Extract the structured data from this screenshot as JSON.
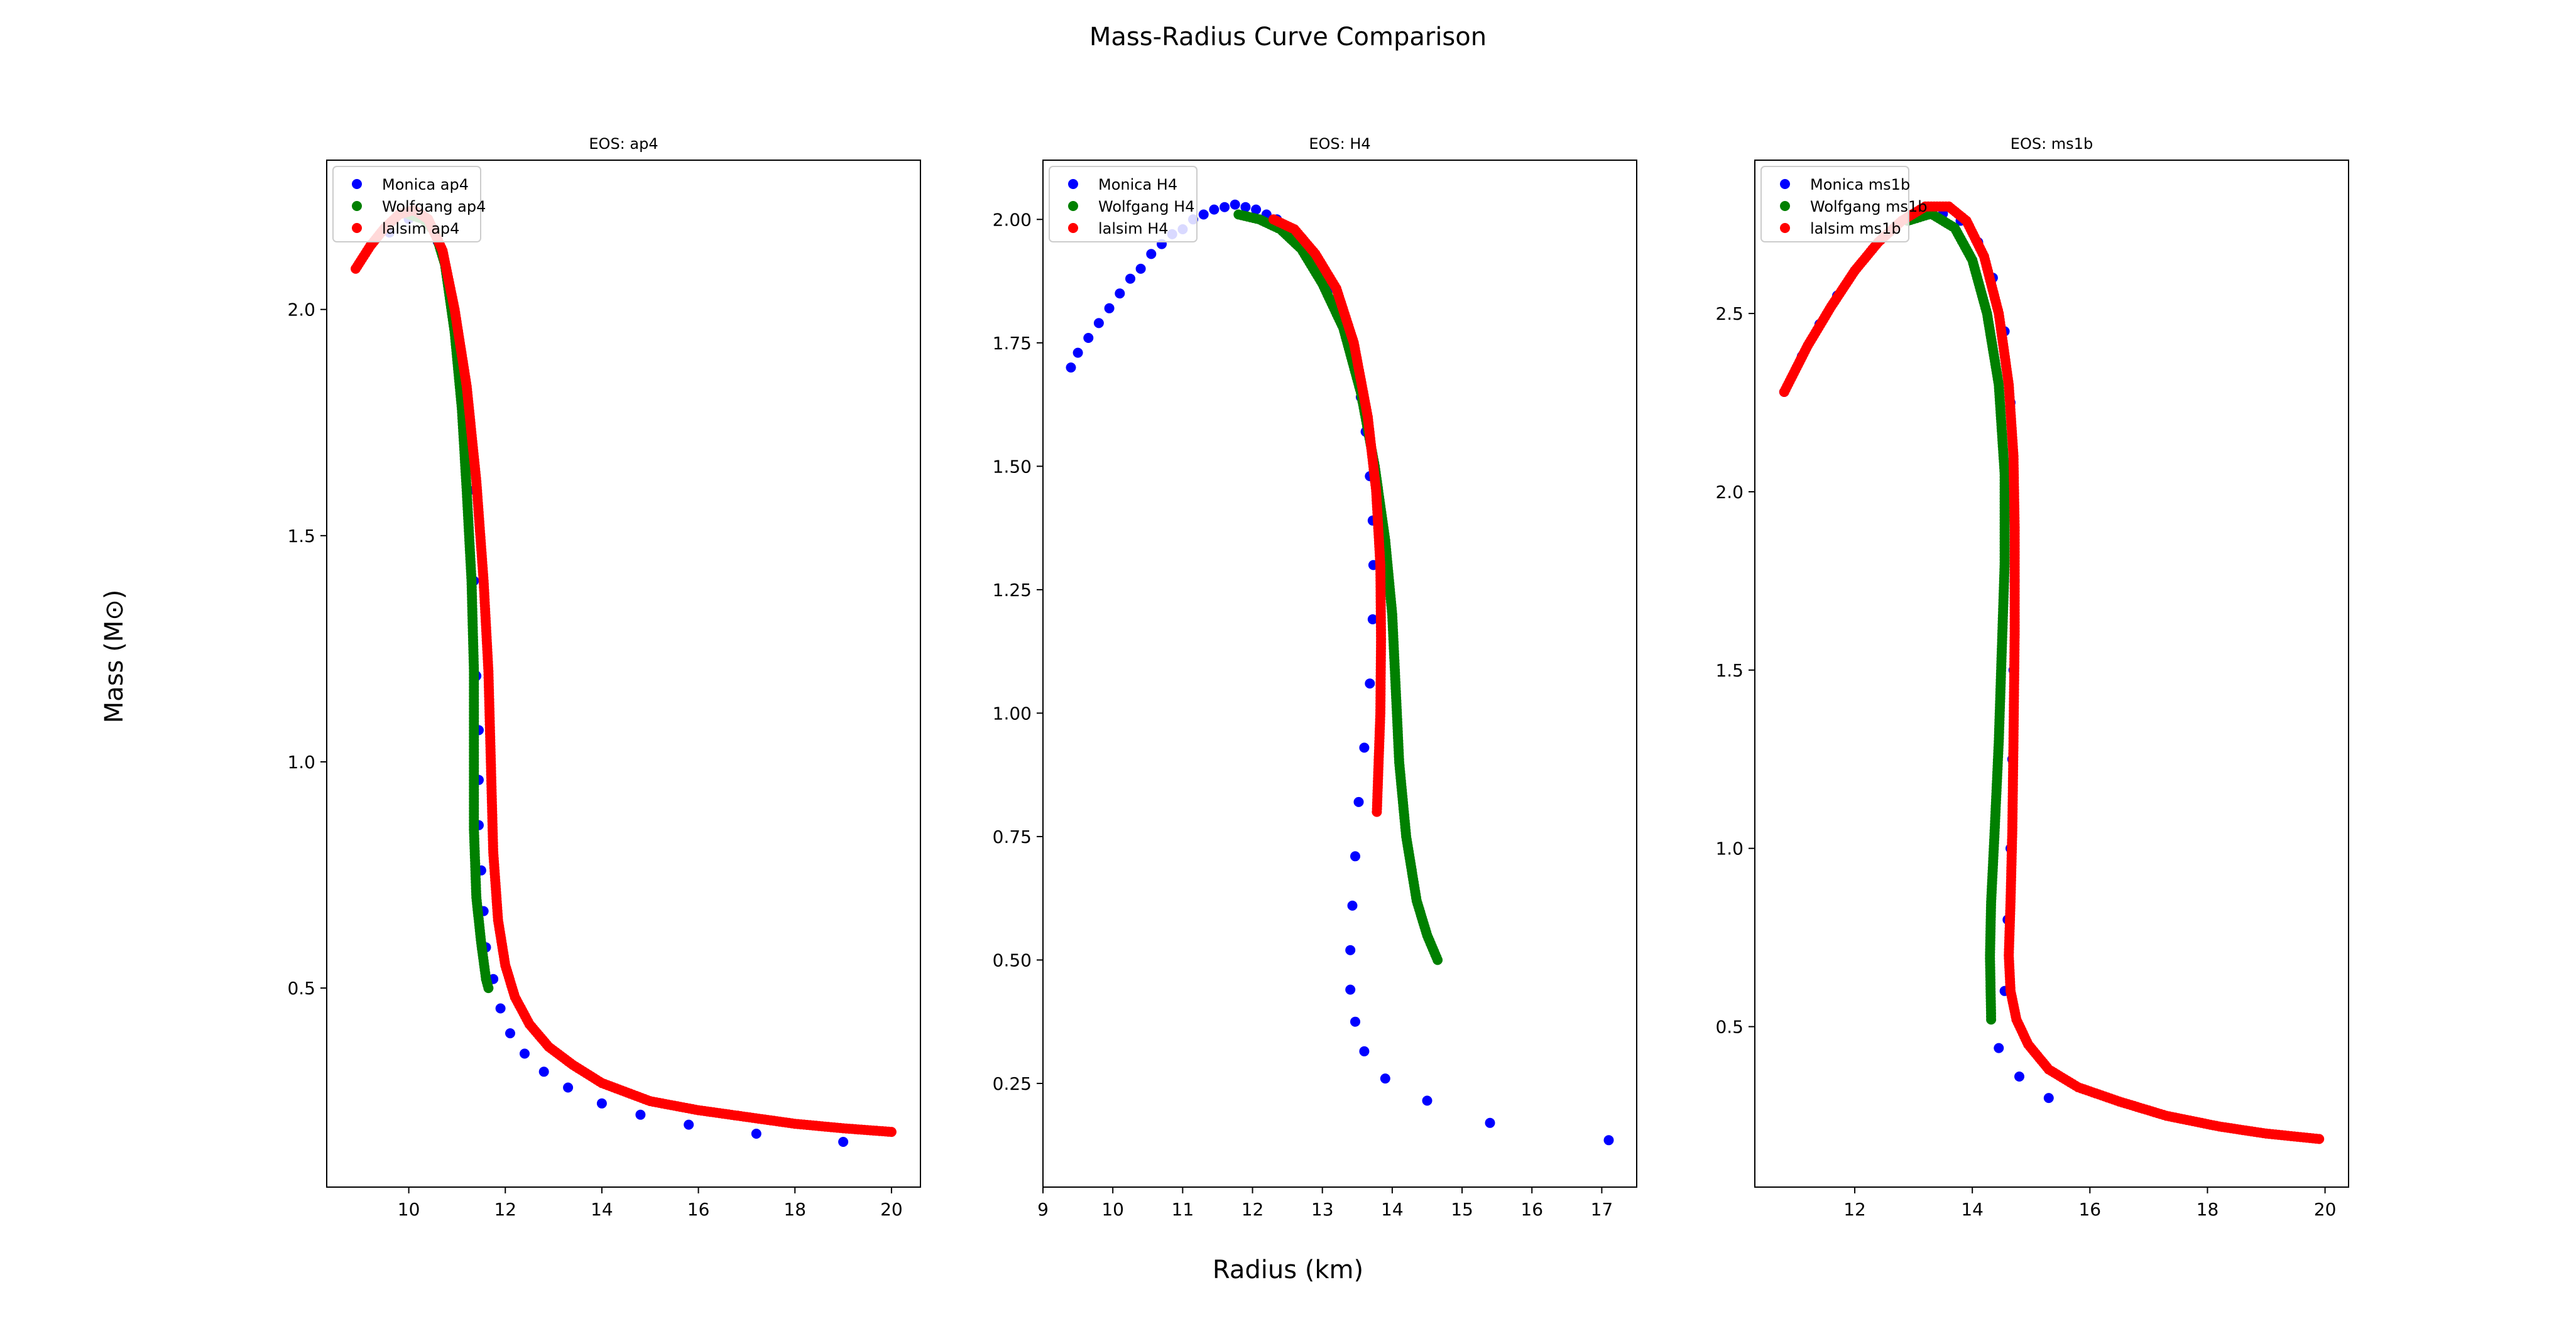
{
  "figure": {
    "title": "Mass-Radius Curve Comparison",
    "xlabel": "Radius (km)",
    "ylabel": "Mass (M⊙)"
  },
  "chart_data": [
    {
      "type": "scatter",
      "title": "EOS: ap4",
      "xlim": [
        8.3,
        20.6
      ],
      "ylim": [
        0.06,
        2.33
      ],
      "xticks": [
        10,
        12,
        14,
        16,
        18,
        20
      ],
      "yticks": [
        0.5,
        1.0,
        1.5,
        2.0
      ],
      "grid": false,
      "legend_position": "top-left",
      "series": [
        {
          "name": "Monica ap4",
          "color": "#0000ff",
          "style": "sparse",
          "points": [
            [
              9.6,
              2.17
            ],
            [
              10.0,
              2.2
            ],
            [
              10.3,
              2.2
            ],
            [
              10.6,
              2.15
            ],
            [
              10.9,
              2.02
            ],
            [
              11.1,
              1.82
            ],
            [
              11.25,
              1.6
            ],
            [
              11.35,
              1.4
            ],
            [
              11.4,
              1.19
            ],
            [
              11.45,
              1.07
            ],
            [
              11.45,
              0.96
            ],
            [
              11.45,
              0.86
            ],
            [
              11.5,
              0.76
            ],
            [
              11.55,
              0.67
            ],
            [
              11.6,
              0.59
            ],
            [
              11.75,
              0.52
            ],
            [
              11.9,
              0.455
            ],
            [
              12.1,
              0.4
            ],
            [
              12.4,
              0.355
            ],
            [
              12.8,
              0.315
            ],
            [
              13.3,
              0.28
            ],
            [
              14.0,
              0.245
            ],
            [
              14.8,
              0.22
            ],
            [
              15.8,
              0.198
            ],
            [
              17.2,
              0.178
            ],
            [
              19.0,
              0.16
            ]
          ]
        },
        {
          "name": "Wolfgang ap4",
          "color": "#008000",
          "style": "dense",
          "points": [
            [
              10.0,
              2.21
            ],
            [
              10.3,
              2.2
            ],
            [
              10.55,
              2.17
            ],
            [
              10.75,
              2.1
            ],
            [
              10.95,
              1.95
            ],
            [
              11.1,
              1.78
            ],
            [
              11.2,
              1.6
            ],
            [
              11.3,
              1.4
            ],
            [
              11.35,
              1.2
            ],
            [
              11.35,
              1.0
            ],
            [
              11.35,
              0.85
            ],
            [
              11.4,
              0.7
            ],
            [
              11.5,
              0.6
            ],
            [
              11.6,
              0.52
            ],
            [
              11.65,
              0.5
            ]
          ]
        },
        {
          "name": "lalsim ap4",
          "color": "#ff0000",
          "style": "dense",
          "points": [
            [
              8.9,
              2.09
            ],
            [
              9.2,
              2.14
            ],
            [
              9.5,
              2.18
            ],
            [
              9.8,
              2.21
            ],
            [
              10.1,
              2.22
            ],
            [
              10.4,
              2.2
            ],
            [
              10.7,
              2.13
            ],
            [
              10.95,
              2.0
            ],
            [
              11.2,
              1.83
            ],
            [
              11.4,
              1.62
            ],
            [
              11.55,
              1.4
            ],
            [
              11.65,
              1.2
            ],
            [
              11.7,
              1.0
            ],
            [
              11.75,
              0.8
            ],
            [
              11.85,
              0.65
            ],
            [
              12.0,
              0.55
            ],
            [
              12.2,
              0.48
            ],
            [
              12.5,
              0.42
            ],
            [
              12.9,
              0.37
            ],
            [
              13.4,
              0.33
            ],
            [
              14.0,
              0.29
            ],
            [
              15.0,
              0.25
            ],
            [
              16.0,
              0.23
            ],
            [
              17.0,
              0.215
            ],
            [
              18.0,
              0.2
            ],
            [
              19.0,
              0.19
            ],
            [
              20.0,
              0.182
            ]
          ]
        }
      ]
    },
    {
      "type": "scatter",
      "title": "EOS: H4",
      "xlim": [
        9.0,
        17.5
      ],
      "ylim": [
        0.04,
        2.12
      ],
      "xticks": [
        9,
        10,
        11,
        12,
        13,
        14,
        15,
        16,
        17
      ],
      "yticks": [
        0.25,
        0.5,
        0.75,
        1.0,
        1.25,
        1.5,
        1.75,
        2.0
      ],
      "tick_decimals": 2,
      "grid": false,
      "legend_position": "top-left",
      "series": [
        {
          "name": "Monica H4",
          "color": "#0000ff",
          "style": "sparse",
          "points": [
            [
              9.4,
              1.7
            ],
            [
              9.5,
              1.73
            ],
            [
              9.65,
              1.76
            ],
            [
              9.8,
              1.79
            ],
            [
              9.95,
              1.82
            ],
            [
              10.1,
              1.85
            ],
            [
              10.25,
              1.88
            ],
            [
              10.4,
              1.9
            ],
            [
              10.55,
              1.93
            ],
            [
              10.7,
              1.95
            ],
            [
              10.85,
              1.97
            ],
            [
              11.0,
              1.98
            ],
            [
              11.15,
              2.0
            ],
            [
              11.3,
              2.01
            ],
            [
              11.45,
              2.02
            ],
            [
              11.6,
              2.025
            ],
            [
              11.75,
              2.03
            ],
            [
              11.9,
              2.025
            ],
            [
              12.05,
              2.02
            ],
            [
              12.2,
              2.01
            ],
            [
              12.35,
              2.0
            ],
            [
              12.5,
              1.98
            ],
            [
              12.65,
              1.96
            ],
            [
              12.8,
              1.93
            ],
            [
              12.95,
              1.9
            ],
            [
              13.1,
              1.86
            ],
            [
              13.25,
              1.82
            ],
            [
              13.35,
              1.77
            ],
            [
              13.45,
              1.71
            ],
            [
              13.55,
              1.64
            ],
            [
              13.62,
              1.57
            ],
            [
              13.68,
              1.48
            ],
            [
              13.72,
              1.39
            ],
            [
              13.73,
              1.3
            ],
            [
              13.72,
              1.19
            ],
            [
              13.68,
              1.06
            ],
            [
              13.6,
              0.93
            ],
            [
              13.52,
              0.82
            ],
            [
              13.47,
              0.71
            ],
            [
              13.43,
              0.61
            ],
            [
              13.4,
              0.52
            ],
            [
              13.4,
              0.44
            ],
            [
              13.47,
              0.375
            ],
            [
              13.6,
              0.315
            ],
            [
              13.9,
              0.26
            ],
            [
              14.5,
              0.215
            ],
            [
              15.4,
              0.17
            ],
            [
              17.1,
              0.135
            ]
          ]
        },
        {
          "name": "Wolfgang H4",
          "color": "#008000",
          "style": "dense",
          "points": [
            [
              11.8,
              2.01
            ],
            [
              12.1,
              2.0
            ],
            [
              12.4,
              1.98
            ],
            [
              12.7,
              1.94
            ],
            [
              13.0,
              1.87
            ],
            [
              13.3,
              1.78
            ],
            [
              13.55,
              1.65
            ],
            [
              13.75,
              1.5
            ],
            [
              13.9,
              1.35
            ],
            [
              14.0,
              1.2
            ],
            [
              14.05,
              1.05
            ],
            [
              14.1,
              0.9
            ],
            [
              14.2,
              0.75
            ],
            [
              14.35,
              0.62
            ],
            [
              14.5,
              0.55
            ],
            [
              14.65,
              0.5
            ]
          ]
        },
        {
          "name": "lalsim H4",
          "color": "#ff0000",
          "style": "dense",
          "points": [
            [
              12.3,
              2.0
            ],
            [
              12.6,
              1.98
            ],
            [
              12.9,
              1.93
            ],
            [
              13.2,
              1.86
            ],
            [
              13.45,
              1.75
            ],
            [
              13.65,
              1.6
            ],
            [
              13.77,
              1.45
            ],
            [
              13.83,
              1.3
            ],
            [
              13.84,
              1.15
            ],
            [
              13.83,
              1.0
            ],
            [
              13.8,
              0.88
            ],
            [
              13.78,
              0.8
            ]
          ]
        }
      ]
    },
    {
      "type": "scatter",
      "title": "EOS: ms1b",
      "xlim": [
        10.3,
        20.4
      ],
      "ylim": [
        0.05,
        2.93
      ],
      "xticks": [
        12,
        14,
        16,
        18,
        20
      ],
      "yticks": [
        0.5,
        1.0,
        1.5,
        2.0,
        2.5
      ],
      "grid": false,
      "legend_position": "top-left",
      "series": [
        {
          "name": "Monica ms1b",
          "color": "#0000ff",
          "style": "sparse",
          "points": [
            [
              10.8,
              2.28
            ],
            [
              11.1,
              2.38
            ],
            [
              11.4,
              2.47
            ],
            [
              11.7,
              2.55
            ],
            [
              12.0,
              2.62
            ],
            [
              12.3,
              2.68
            ],
            [
              12.6,
              2.73
            ],
            [
              12.9,
              2.76
            ],
            [
              13.2,
              2.78
            ],
            [
              13.5,
              2.78
            ],
            [
              13.8,
              2.76
            ],
            [
              14.1,
              2.7
            ],
            [
              14.35,
              2.6
            ],
            [
              14.55,
              2.45
            ],
            [
              14.65,
              2.25
            ],
            [
              14.7,
              2.0
            ],
            [
              14.72,
              1.75
            ],
            [
              14.7,
              1.5
            ],
            [
              14.68,
              1.25
            ],
            [
              14.65,
              1.0
            ],
            [
              14.6,
              0.8
            ],
            [
              14.55,
              0.6
            ],
            [
              14.45,
              0.44
            ],
            [
              14.8,
              0.36
            ],
            [
              15.3,
              0.3
            ]
          ]
        },
        {
          "name": "Wolfgang ms1b",
          "color": "#008000",
          "style": "dense",
          "points": [
            [
              12.9,
              2.76
            ],
            [
              13.3,
              2.78
            ],
            [
              13.7,
              2.74
            ],
            [
              14.0,
              2.65
            ],
            [
              14.25,
              2.5
            ],
            [
              14.45,
              2.3
            ],
            [
              14.55,
              2.05
            ],
            [
              14.55,
              1.8
            ],
            [
              14.5,
              1.55
            ],
            [
              14.45,
              1.3
            ],
            [
              14.38,
              1.05
            ],
            [
              14.32,
              0.85
            ],
            [
              14.3,
              0.7
            ],
            [
              14.32,
              0.52
            ]
          ]
        },
        {
          "name": "lalsim ms1b",
          "color": "#ff0000",
          "style": "dense",
          "points": [
            [
              10.8,
              2.28
            ],
            [
              11.2,
              2.41
            ],
            [
              11.6,
              2.52
            ],
            [
              12.0,
              2.62
            ],
            [
              12.4,
              2.7
            ],
            [
              12.8,
              2.76
            ],
            [
              13.2,
              2.8
            ],
            [
              13.6,
              2.8
            ],
            [
              13.9,
              2.76
            ],
            [
              14.2,
              2.66
            ],
            [
              14.45,
              2.5
            ],
            [
              14.62,
              2.3
            ],
            [
              14.7,
              2.1
            ],
            [
              14.72,
              1.9
            ],
            [
              14.72,
              1.6
            ],
            [
              14.7,
              1.3
            ],
            [
              14.68,
              1.05
            ],
            [
              14.65,
              0.85
            ],
            [
              14.62,
              0.7
            ],
            [
              14.65,
              0.6
            ],
            [
              14.75,
              0.52
            ],
            [
              14.95,
              0.45
            ],
            [
              15.3,
              0.38
            ],
            [
              15.8,
              0.33
            ],
            [
              16.5,
              0.29
            ],
            [
              17.3,
              0.25
            ],
            [
              18.2,
              0.22
            ],
            [
              19.0,
              0.2
            ],
            [
              19.9,
              0.185
            ]
          ]
        }
      ]
    }
  ]
}
